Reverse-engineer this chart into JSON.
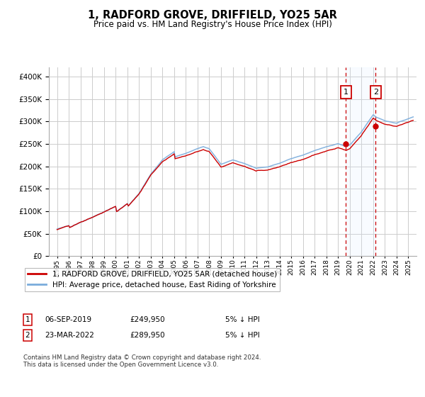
{
  "title": "1, RADFORD GROVE, DRIFFIELD, YO25 5AR",
  "subtitle": "Price paid vs. HM Land Registry's House Price Index (HPI)",
  "legend_label_red": "1, RADFORD GROVE, DRIFFIELD, YO25 5AR (detached house)",
  "legend_label_blue": "HPI: Average price, detached house, East Riding of Yorkshire",
  "annotation1_date": "06-SEP-2019",
  "annotation1_price": "£249,950",
  "annotation1_note": "5% ↓ HPI",
  "annotation2_date": "23-MAR-2022",
  "annotation2_price": "£289,950",
  "annotation2_note": "5% ↓ HPI",
  "footer": "Contains HM Land Registry data © Crown copyright and database right 2024.\nThis data is licensed under the Open Government Licence v3.0.",
  "ylim": [
    0,
    420000
  ],
  "yticks": [
    0,
    50000,
    100000,
    150000,
    200000,
    250000,
    300000,
    350000,
    400000
  ],
  "red_color": "#cc0000",
  "blue_color": "#7aacdc",
  "highlight_color": "#ddeeff",
  "vline_color": "#cc0000",
  "background_color": "#ffffff",
  "grid_color": "#cccccc",
  "sale1_year": 2019.67,
  "sale2_year": 2022.22,
  "sale1_price": 249950,
  "sale2_price": 289950,
  "xlim_left": 1994.3,
  "xlim_right": 2025.7
}
